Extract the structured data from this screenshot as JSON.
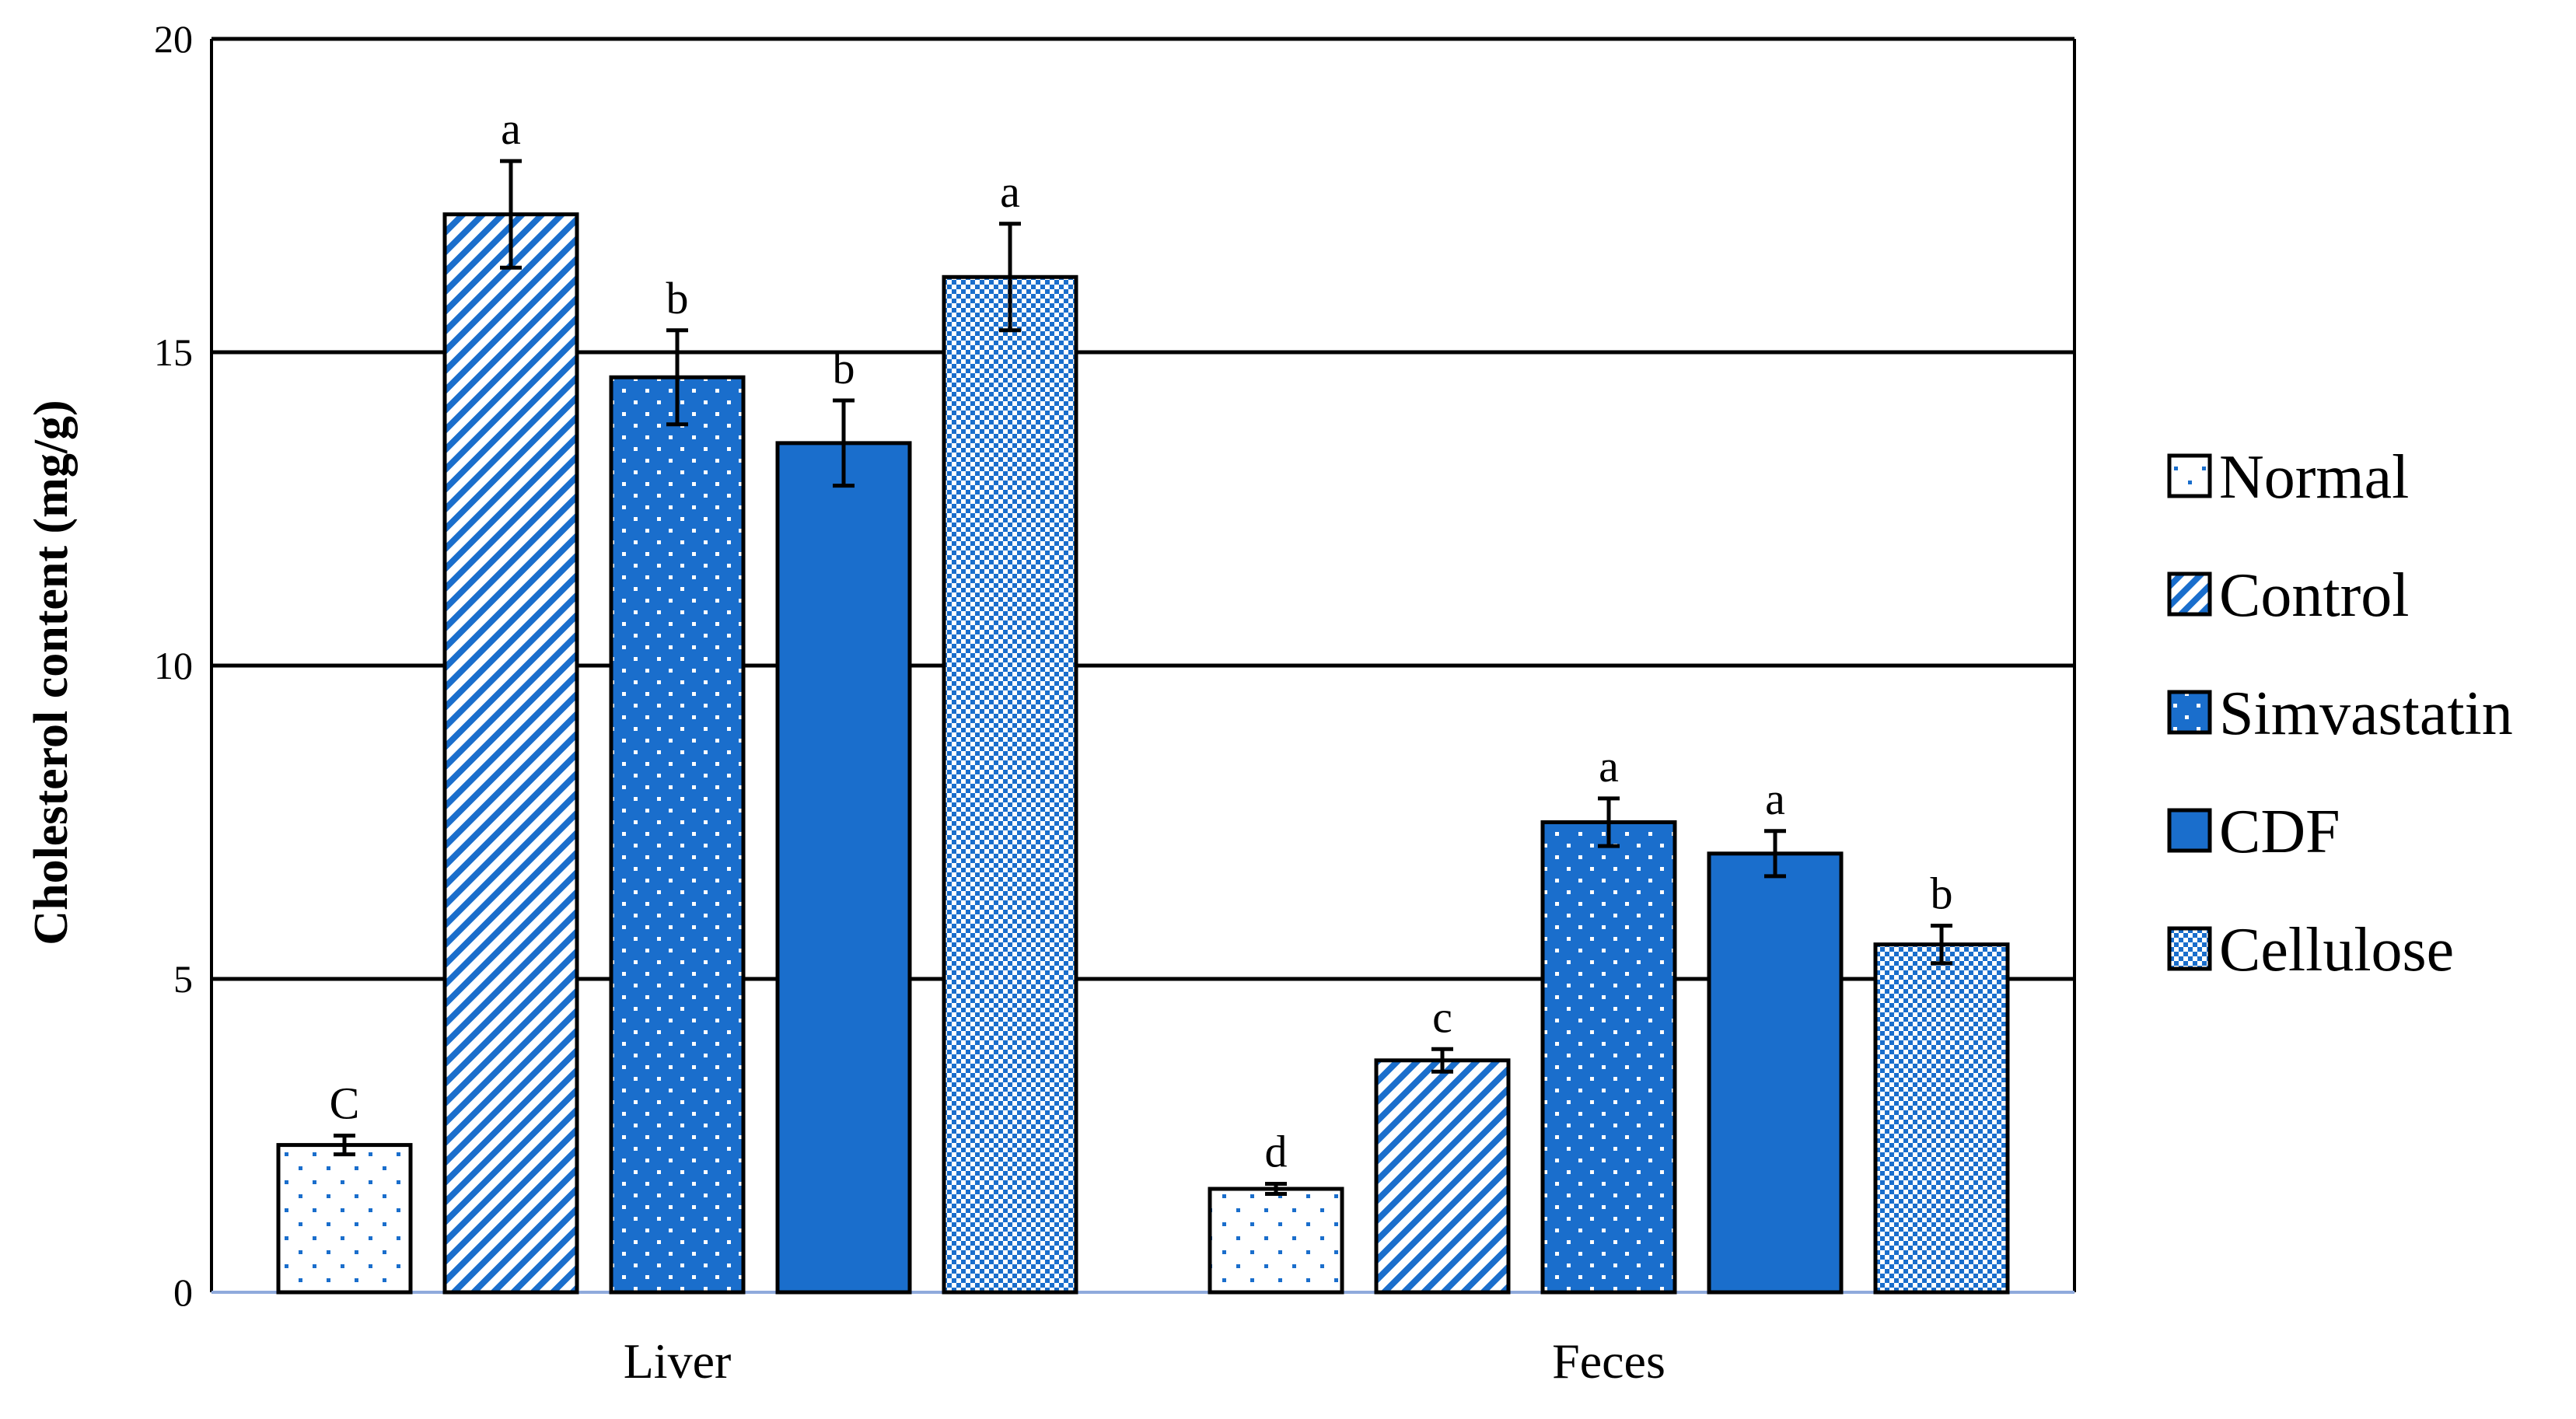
{
  "chart_data": {
    "type": "bar",
    "title": "",
    "xlabel": "",
    "ylabel": "Cholesterol content (mg/g)",
    "ylim": [
      0,
      20
    ],
    "yticks": [
      0,
      5,
      10,
      15,
      20
    ],
    "grid": true,
    "legend_position": "right",
    "categories": [
      "Liver",
      "Feces"
    ],
    "series": [
      {
        "name": "Normal",
        "pattern": "dots-light",
        "values": [
          2.35,
          1.65
        ],
        "errors": [
          0.15,
          0.08
        ],
        "labels": [
          "C",
          "d"
        ]
      },
      {
        "name": "Control",
        "pattern": "diagonal",
        "values": [
          17.2,
          3.7
        ],
        "errors": [
          0.85,
          0.18
        ],
        "labels": [
          "a",
          "c"
        ]
      },
      {
        "name": "Simvastatin",
        "pattern": "dots-dark",
        "values": [
          14.6,
          7.5
        ],
        "errors": [
          0.75,
          0.38
        ],
        "labels": [
          "b",
          "a"
        ]
      },
      {
        "name": "CDF",
        "pattern": "solid",
        "values": [
          13.55,
          7.0
        ],
        "errors": [
          0.68,
          0.36
        ],
        "labels": [
          "b",
          "a"
        ]
      },
      {
        "name": "Cellulose",
        "pattern": "dense-dots",
        "values": [
          16.2,
          5.55
        ],
        "errors": [
          0.85,
          0.3
        ],
        "labels": [
          "a",
          "b"
        ]
      }
    ],
    "colors": {
      "blue": "#1a6ecc",
      "light_fill": "#ffffff",
      "border": "#000000"
    }
  }
}
